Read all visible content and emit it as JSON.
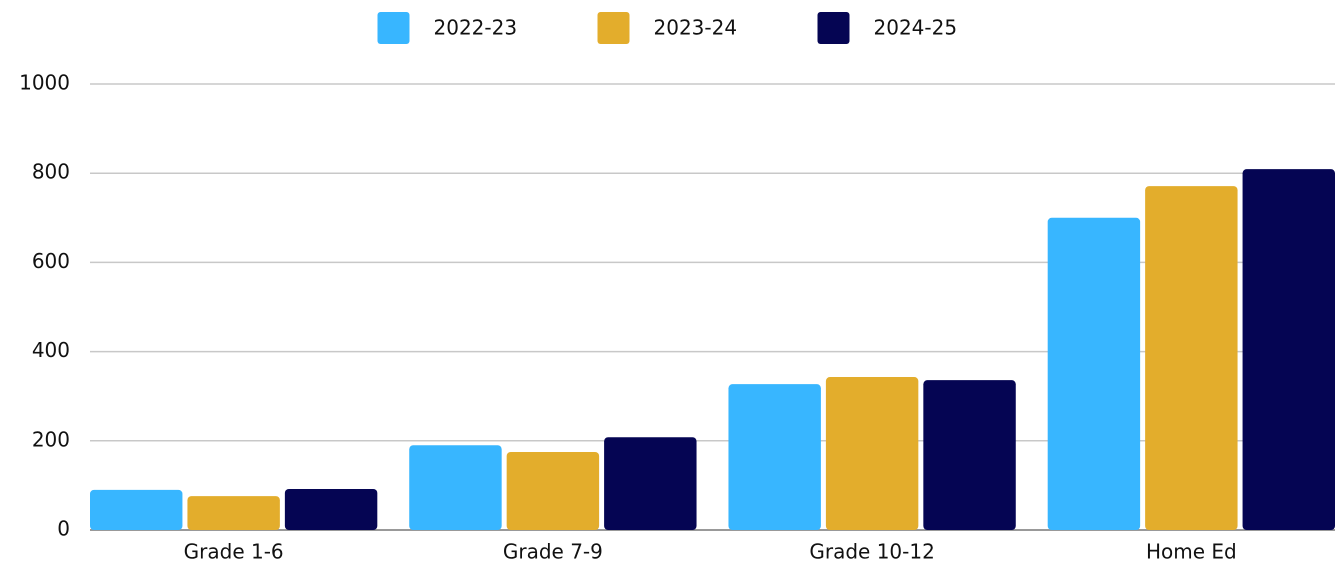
{
  "chart_data": {
    "type": "bar",
    "categories": [
      "Grade 1-6",
      "Grade 7-9",
      "Grade 10-12",
      "Home Ed"
    ],
    "series": [
      {
        "name": "2022-23",
        "color": "#38b6ff",
        "values": [
          90,
          190,
          327,
          700
        ]
      },
      {
        "name": "2023-24",
        "color": "#e3ad2c",
        "values": [
          76,
          175,
          343,
          771
        ]
      },
      {
        "name": "2024-25",
        "color": "#050553",
        "values": [
          92,
          208,
          336,
          809
        ]
      }
    ],
    "ylim": [
      0,
      1000
    ],
    "yticks": [
      0,
      200,
      400,
      600,
      800,
      1000
    ],
    "grid": true,
    "legend": "top"
  }
}
